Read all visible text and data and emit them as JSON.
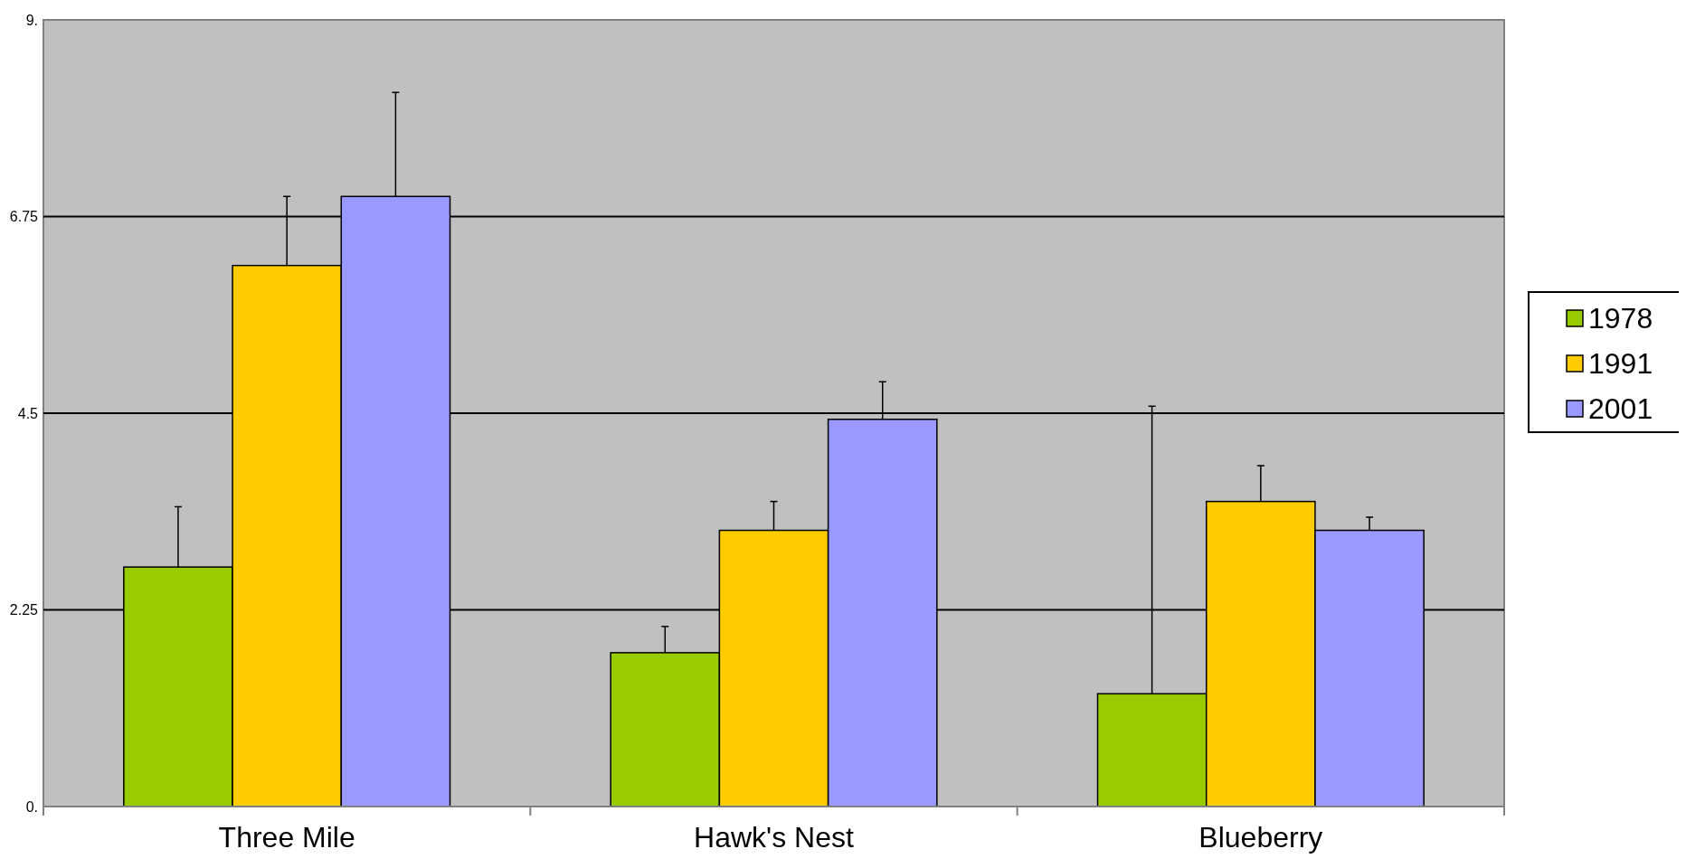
{
  "chart_data": {
    "type": "bar",
    "categories": [
      "Three Mile",
      "Hawk's Nest",
      "Blueberry"
    ],
    "series": [
      {
        "name": "1978",
        "color": "#99cc00",
        "values": [
          2.74,
          1.76,
          1.29
        ],
        "errors": [
          [
            2.74,
            3.43
          ],
          [
            1.76,
            2.06
          ],
          [
            1.29,
            4.58
          ]
        ]
      },
      {
        "name": "1991",
        "color": "#ffcc00",
        "values": [
          6.19,
          3.16,
          3.49
        ],
        "errors": [
          [
            6.19,
            6.98
          ],
          [
            3.16,
            3.49
          ],
          [
            3.49,
            3.9
          ]
        ]
      },
      {
        "name": "2001",
        "color": "#9999ff",
        "values": [
          6.98,
          4.43,
          3.16
        ],
        "errors": [
          [
            6.98,
            8.17
          ],
          [
            4.43,
            4.86
          ],
          [
            3.16,
            3.31
          ]
        ]
      }
    ],
    "ylim": [
      0,
      9
    ],
    "yticks": [
      {
        "value": 0,
        "label": "0."
      },
      2.25,
      4.5,
      6.75,
      {
        "value": 9,
        "label": "9."
      }
    ],
    "grid": "y",
    "legend": "right"
  }
}
